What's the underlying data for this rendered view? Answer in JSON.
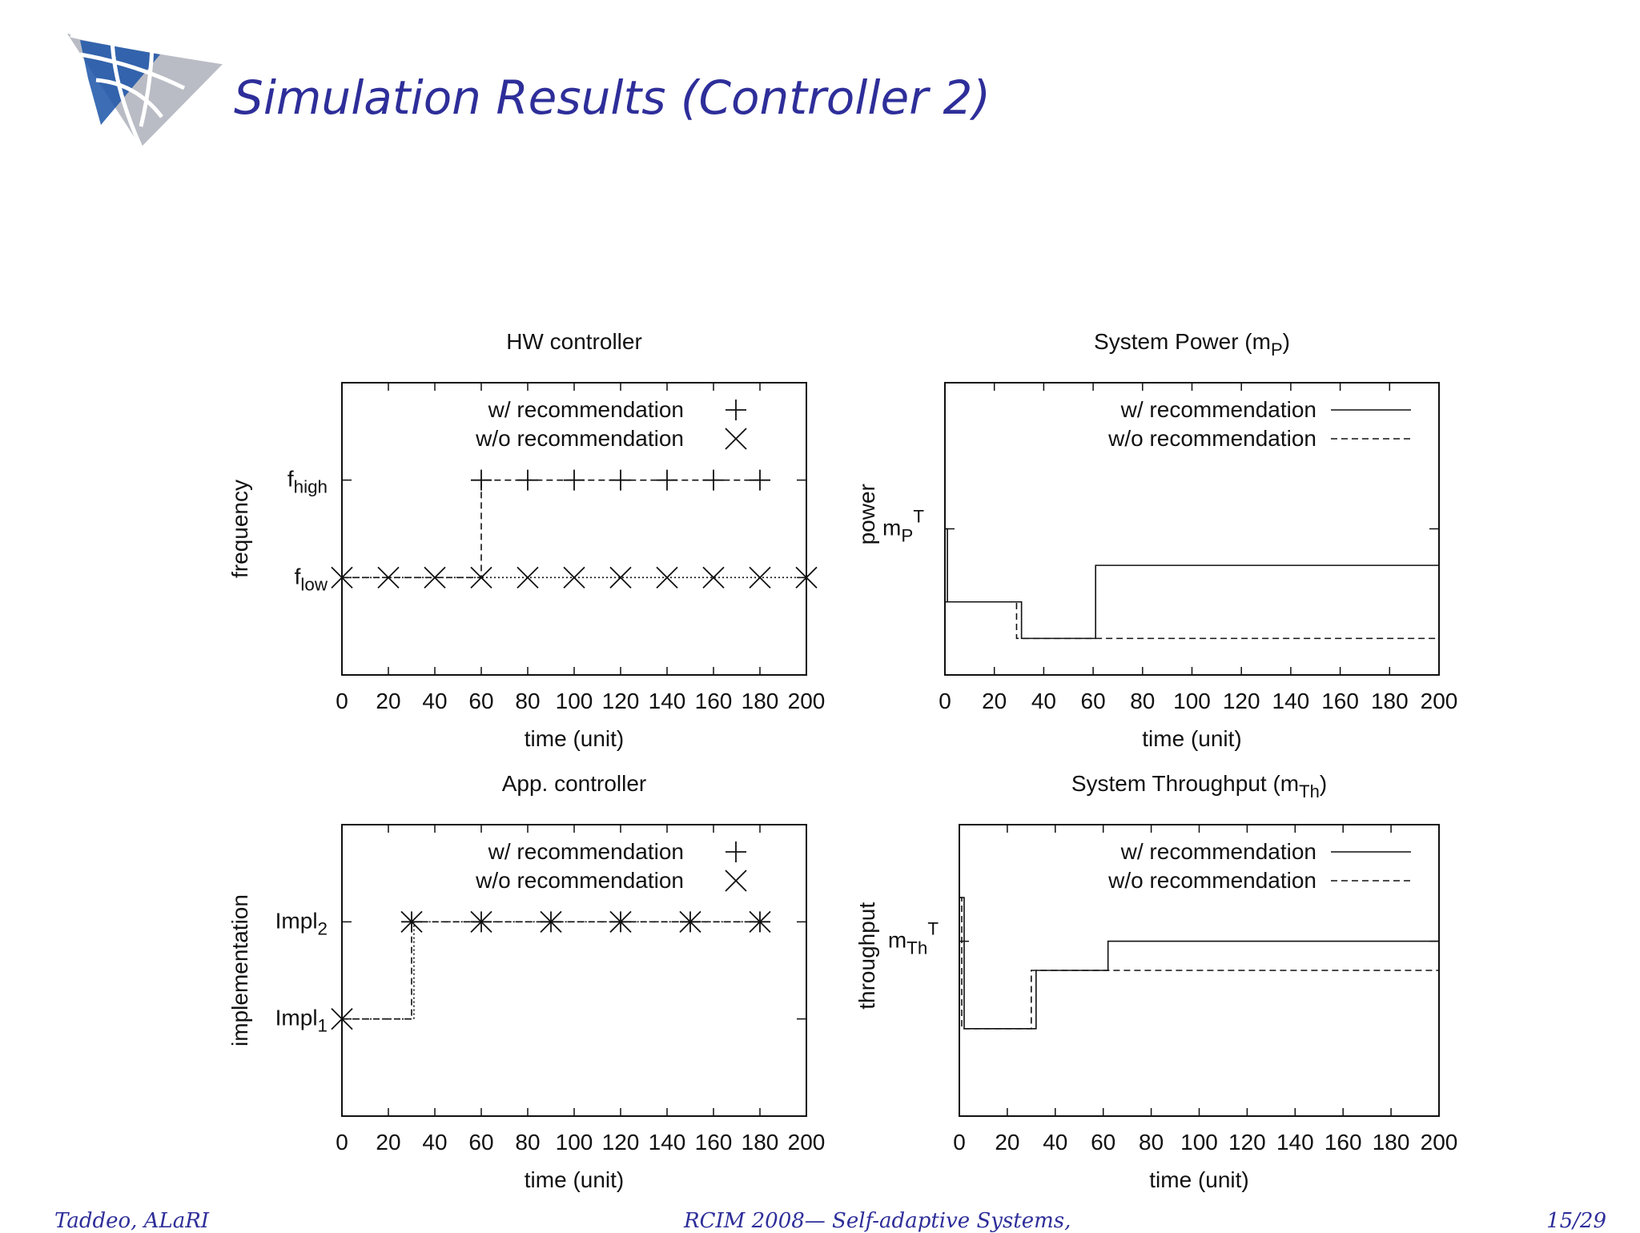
{
  "slide": {
    "title": "Simulation Results (Controller 2)",
    "logo": "alari-logo",
    "footer": {
      "author": "Taddeo, ALaRI",
      "venue": "RCIM 2008— Self-adaptive Systems,",
      "page": "15/29"
    },
    "colors": {
      "title": "#2e2e9a",
      "logo_blue": "#1a53a8",
      "logo_gray": "#b9bcc4"
    }
  },
  "chart_data": [
    {
      "id": "hw",
      "type": "line",
      "title": "HW controller",
      "xlabel": "time (unit)",
      "ylabel": "frequency",
      "xlim": [
        0,
        200
      ],
      "xticks": [
        0,
        20,
        40,
        60,
        80,
        100,
        120,
        140,
        160,
        180,
        200
      ],
      "ylim": [
        0,
        3
      ],
      "yticks": [
        {
          "value": 1,
          "base": "f",
          "sub": "low",
          "sup": ""
        },
        {
          "value": 2,
          "base": "f",
          "sub": "high",
          "sup": ""
        }
      ],
      "legend": "top-right",
      "series": [
        {
          "name": "w/ recommendation",
          "style": "dashed",
          "marker": "plus",
          "x": [
            0,
            20,
            40,
            60,
            60,
            80,
            100,
            120,
            140,
            160,
            180
          ],
          "y": [
            1,
            1,
            1,
            1,
            2,
            2,
            2,
            2,
            2,
            2,
            2
          ],
          "marker_x": [
            60,
            80,
            100,
            120,
            140,
            160,
            180
          ]
        },
        {
          "name": "w/o recommendation",
          "style": "dotted",
          "marker": "cross",
          "x": [
            0,
            20,
            40,
            60,
            80,
            100,
            120,
            140,
            160,
            180,
            200
          ],
          "y": [
            1,
            1,
            1,
            1,
            1,
            1,
            1,
            1,
            1,
            1,
            1
          ]
        }
      ]
    },
    {
      "id": "power",
      "type": "line",
      "title": "System Power",
      "title_symbol": {
        "base": "m",
        "sub": "P",
        "sup": ""
      },
      "xlabel": "time (unit)",
      "ylabel": "power",
      "xlim": [
        0,
        200
      ],
      "xticks": [
        0,
        20,
        40,
        60,
        80,
        100,
        120,
        140,
        160,
        180,
        200
      ],
      "ylim": [
        0,
        1
      ],
      "yticks": [
        {
          "value": 0.5,
          "base": "m",
          "sub": "P",
          "sup": "T"
        }
      ],
      "legend": "top-right",
      "series": [
        {
          "name": "w/ recommendation",
          "style": "solid",
          "x": [
            0,
            1,
            1,
            31,
            31,
            61,
            61,
            200
          ],
          "y": [
            0.5,
            0.5,
            0.25,
            0.25,
            0.125,
            0.125,
            0.375,
            0.375
          ]
        },
        {
          "name": "w/o recommendation",
          "style": "dashed",
          "x": [
            0,
            0,
            29,
            29,
            200
          ],
          "y": [
            0.5,
            0.25,
            0.25,
            0.125,
            0.125
          ]
        }
      ]
    },
    {
      "id": "app",
      "type": "line",
      "title": "App. controller",
      "xlabel": "time (unit)",
      "ylabel": "implementation",
      "xlim": [
        0,
        200
      ],
      "xticks": [
        0,
        20,
        40,
        60,
        80,
        100,
        120,
        140,
        160,
        180,
        200
      ],
      "ylim": [
        0,
        3
      ],
      "yticks": [
        {
          "value": 1,
          "base": "Impl",
          "sub": "1",
          "sup": ""
        },
        {
          "value": 2,
          "base": "Impl",
          "sub": "2",
          "sup": ""
        }
      ],
      "legend": "top-right",
      "series": [
        {
          "name": "w/ recommendation",
          "style": "dashed",
          "marker": "plus",
          "x": [
            0,
            30,
            30,
            60,
            90,
            120,
            150,
            180
          ],
          "y": [
            1,
            1,
            2,
            2,
            2,
            2,
            2,
            2
          ],
          "marker_x": [
            30,
            60,
            90,
            120,
            150,
            180
          ]
        },
        {
          "name": "w/o recommendation",
          "style": "dotted",
          "marker": "cross",
          "x": [
            0,
            31,
            31,
            60,
            90,
            120,
            150,
            180
          ],
          "y": [
            1,
            1,
            2,
            2,
            2,
            2,
            2,
            2
          ],
          "marker_x": [
            0,
            30,
            60,
            90,
            120,
            150,
            180
          ]
        }
      ]
    },
    {
      "id": "throughput",
      "type": "line",
      "title": "System Throughput",
      "title_symbol": {
        "base": "m",
        "sub": "Th",
        "sup": ""
      },
      "xlabel": "time (unit)",
      "ylabel": "throughput",
      "xlim": [
        0,
        200
      ],
      "xticks": [
        0,
        20,
        40,
        60,
        80,
        100,
        120,
        140,
        160,
        180,
        200
      ],
      "ylim": [
        0,
        1
      ],
      "yticks": [
        {
          "value": 0.6,
          "base": "m",
          "sub": "Th",
          "sup": "T"
        }
      ],
      "legend": "top-right",
      "series": [
        {
          "name": "w/ recommendation",
          "style": "solid",
          "x": [
            0,
            2,
            2,
            32,
            32,
            62,
            62,
            200
          ],
          "y": [
            0.75,
            0.75,
            0.3,
            0.3,
            0.5,
            0.5,
            0.6,
            0.6
          ]
        },
        {
          "name": "w/o recommendation",
          "style": "dashed",
          "x": [
            0,
            1,
            1,
            30,
            30,
            200
          ],
          "y": [
            0.75,
            0.75,
            0.3,
            0.3,
            0.5,
            0.5
          ]
        }
      ]
    }
  ]
}
